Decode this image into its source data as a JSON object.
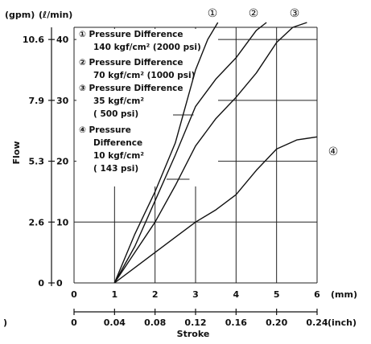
{
  "chart_data": {
    "type": "line",
    "title": "",
    "xlabel": "Stroke",
    "ylabel": "Flow",
    "x_unit_top": "(mm)",
    "x_unit_bottom": "(inch)",
    "y_unit_left": "(gpm)",
    "y_unit_right": "(ℓ/min)",
    "xlim": [
      0,
      6
    ],
    "ylim": [
      0,
      42
    ],
    "x_ticks_mm": [
      "0",
      "1",
      "2",
      "3",
      "4",
      "5",
      "6"
    ],
    "x_ticks_inch": [
      "0",
      "0.04",
      "0.08",
      "0.12",
      "0.16",
      "0.20",
      "0.24"
    ],
    "y_ticks": [
      {
        "gpm": "0",
        "lmin": "0",
        "value": 0
      },
      {
        "gpm": "2.6",
        "lmin": "10",
        "value": 10
      },
      {
        "gpm": "5.3",
        "lmin": "20",
        "value": 20
      },
      {
        "gpm": "7.9",
        "lmin": "30",
        "value": 30
      },
      {
        "gpm": "10.6",
        "lmin": "40",
        "value": 40
      }
    ],
    "grid": true,
    "legend_position": "top-left",
    "series": [
      {
        "marker": "①",
        "legend_lines": [
          "① Pressure Difference",
          "140 kgf/cm² (2000 psi)"
        ],
        "x": [
          1.0,
          1.5,
          2.0,
          2.5,
          3.0,
          3.3,
          3.55
        ],
        "y": [
          0,
          8,
          15,
          23,
          35,
          40,
          43
        ]
      },
      {
        "marker": "②",
        "legend_lines": [
          "② Pressure Difference",
          "70 kgf/cm² (1000 psi)"
        ],
        "x": [
          1.0,
          1.5,
          2.0,
          2.5,
          3.0,
          3.5,
          4.0,
          4.5,
          4.75
        ],
        "y": [
          0,
          6,
          13.5,
          21,
          29,
          33.5,
          37,
          41.5,
          43
        ]
      },
      {
        "marker": "③",
        "legend_lines": [
          "③ Pressure Difference",
          "35 kgf/cm²",
          "( 500 psi)"
        ],
        "x": [
          1.0,
          1.5,
          2.0,
          2.5,
          3.0,
          3.5,
          4.0,
          4.5,
          5.0,
          5.4,
          5.75
        ],
        "y": [
          0,
          5,
          10,
          16,
          22.5,
          27,
          30.5,
          34.5,
          39.5,
          42,
          43
        ]
      },
      {
        "marker": "④",
        "legend_lines": [
          "④ Pressure",
          "Difference",
          "10 kgf/cm²",
          "( 143 psi)"
        ],
        "x": [
          1.0,
          1.5,
          2.0,
          2.5,
          3.0,
          3.5,
          4.0,
          4.5,
          5.0,
          5.5,
          6.0
        ],
        "y": [
          0,
          2.5,
          5,
          7.5,
          10,
          12,
          14.5,
          18.5,
          22,
          23.5,
          24
        ]
      }
    ]
  }
}
